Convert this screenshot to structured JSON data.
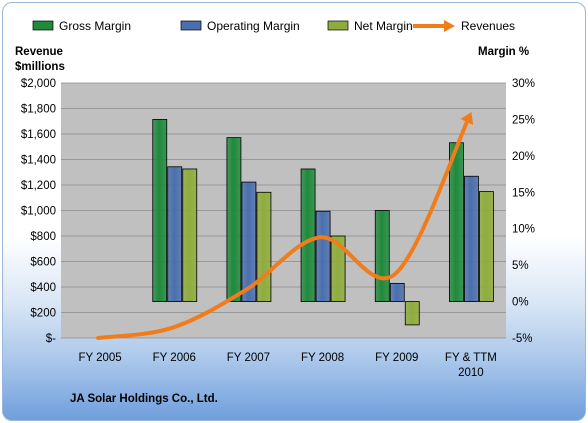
{
  "chart_data": {
    "type": "bar",
    "categories": [
      "FY 2005",
      "FY 2006",
      "FY 2007",
      "FY 2008",
      "FY 2009",
      "FY & TTM 2010"
    ],
    "category_lines": [
      [
        "FY 2005"
      ],
      [
        "FY 2006"
      ],
      [
        "FY 2007"
      ],
      [
        "FY 2008"
      ],
      [
        "FY 2009"
      ],
      [
        "FY & TTM",
        "2010"
      ]
    ],
    "series": [
      {
        "name": "Gross Margin",
        "kind": "bar",
        "axis": "right",
        "color": "#1f8a3b",
        "values": [
          null,
          25.0,
          22.5,
          18.2,
          12.5,
          21.8
        ]
      },
      {
        "name": "Operating Margin",
        "kind": "bar",
        "axis": "right",
        "color": "#4a6fae",
        "values": [
          null,
          18.5,
          16.4,
          12.4,
          2.5,
          17.2
        ]
      },
      {
        "name": "Net Margin",
        "kind": "bar",
        "axis": "right",
        "color": "#8fad3c",
        "values": [
          null,
          18.2,
          15.0,
          9.0,
          -3.2,
          15.1
        ]
      },
      {
        "name": "Revenues",
        "kind": "line",
        "axis": "left",
        "color": "#f07c1c",
        "values": [
          0,
          80,
          380,
          790,
          500,
          1730
        ]
      }
    ],
    "left_axis": {
      "title_lines": [
        "Revenue",
        "$millions"
      ],
      "min": 0,
      "max": 2000,
      "step": 200,
      "tick_labels": [
        "$-",
        "$200",
        "$400",
        "$600",
        "$800",
        "$1,000",
        "$1,200",
        "$1,400",
        "$1,600",
        "$1,800",
        "$2,000"
      ]
    },
    "right_axis": {
      "title": "Margin  %",
      "min": -5,
      "max": 30,
      "step": 5,
      "tick_labels": [
        "-5%",
        "0%",
        "5%",
        "10%",
        "15%",
        "20%",
        "25%",
        "30%"
      ]
    },
    "footer": "JA Solar Holdings Co., Ltd.",
    "grid": true,
    "legend_position": "top",
    "plot_colors": {
      "background": "#c0c0c0",
      "grid": "#8c8c8c"
    }
  }
}
